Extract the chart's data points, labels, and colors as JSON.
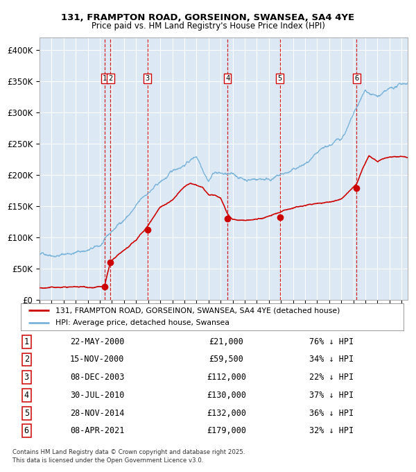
{
  "title1": "131, FRAMPTON ROAD, GORSEINON, SWANSEA, SA4 4YE",
  "title2": "Price paid vs. HM Land Registry's House Price Index (HPI)",
  "background_color": "#dce9f5",
  "plot_bg_color": "#dce9f5",
  "hpi_color": "#7ab3d9",
  "price_color": "#cc0000",
  "transactions": [
    {
      "num": 1,
      "date_label": "22-MAY-2000",
      "date_year": 2000.39,
      "price": 21000,
      "pct": "76% ↓ HPI"
    },
    {
      "num": 2,
      "date_label": "15-NOV-2000",
      "date_year": 2000.88,
      "price": 59500,
      "pct": "34% ↓ HPI"
    },
    {
      "num": 3,
      "date_label": "08-DEC-2003",
      "date_year": 2003.94,
      "price": 112000,
      "pct": "22% ↓ HPI"
    },
    {
      "num": 4,
      "date_label": "30-JUL-2010",
      "date_year": 2010.58,
      "price": 130000,
      "pct": "37% ↓ HPI"
    },
    {
      "num": 5,
      "date_label": "28-NOV-2014",
      "date_year": 2014.91,
      "price": 132000,
      "pct": "36% ↓ HPI"
    },
    {
      "num": 6,
      "date_label": "08-APR-2021",
      "date_year": 2021.27,
      "price": 179000,
      "pct": "32% ↓ HPI"
    }
  ],
  "legend_line1": "131, FRAMPTON ROAD, GORSEINON, SWANSEA, SA4 4YE (detached house)",
  "legend_line2": "HPI: Average price, detached house, Swansea",
  "footer": "Contains HM Land Registry data © Crown copyright and database right 2025.\nThis data is licensed under the Open Government Licence v3.0.",
  "xlim": [
    1995,
    2025.5
  ],
  "ylim": [
    0,
    420000
  ],
  "yticks": [
    0,
    50000,
    100000,
    150000,
    200000,
    250000,
    300000,
    350000,
    400000
  ],
  "ytick_labels": [
    "£0",
    "£50K",
    "£100K",
    "£150K",
    "£200K",
    "£250K",
    "£300K",
    "£350K",
    "£400K"
  ]
}
